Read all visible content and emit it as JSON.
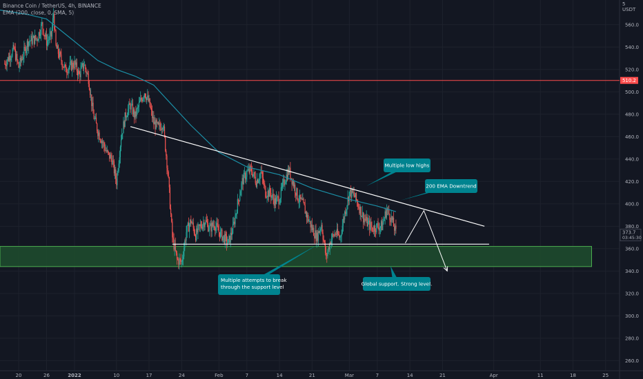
{
  "legend": {
    "symbol_line": "Binance Coin / TetherUS, 4h, BINANCE",
    "indicator_line": "EMA (200, close, 0, SMA, 5)"
  },
  "price_axis_currency": [
    "5",
    "USDT"
  ],
  "colors": {
    "background": "#131722",
    "up": "#26a69a",
    "down": "#ef5350",
    "ema": "#1b8fa6",
    "resistance_line": "#ff4d4d",
    "support_zone_fill": "#1f4d2e",
    "support_zone_border": "#4caf50",
    "trendline": "#ffffff",
    "callout": "#00838f",
    "axis_text": "#b2b5be"
  },
  "icons": [
    "arrow-down-right-icon"
  ],
  "chart_data": {
    "type": "candlestick",
    "title": "Binance Coin / TetherUS, 4h, BINANCE",
    "ylim": [
      251,
      582
    ],
    "y_ticks": [
      260,
      280,
      300,
      320,
      340,
      360,
      380,
      400,
      420,
      440,
      460,
      480,
      500,
      520,
      540,
      560
    ],
    "x_ticks": [
      {
        "label": "20",
        "date": "2021-12-20"
      },
      {
        "label": "26",
        "date": "2021-12-26"
      },
      {
        "label": "2022",
        "date": "2022-01-01"
      },
      {
        "label": "10",
        "date": "2022-01-10"
      },
      {
        "label": "17",
        "date": "2022-01-17"
      },
      {
        "label": "24",
        "date": "2022-01-24"
      },
      {
        "label": "Feb",
        "date": "2022-02-01"
      },
      {
        "label": "7",
        "date": "2022-02-07"
      },
      {
        "label": "14",
        "date": "2022-02-14"
      },
      {
        "label": "21",
        "date": "2022-02-21"
      },
      {
        "label": "Mar",
        "date": "2022-03-01"
      },
      {
        "label": "7",
        "date": "2022-03-07"
      },
      {
        "label": "14",
        "date": "2022-03-14"
      },
      {
        "label": "21",
        "date": "2022-03-21"
      },
      {
        "label": "Apr",
        "date": "2022-04-01"
      },
      {
        "label": "11",
        "date": "2022-04-11"
      },
      {
        "label": "18",
        "date": "2022-04-18"
      },
      {
        "label": "25",
        "date": "2022-04-25"
      }
    ],
    "price_path": [
      [
        "2021-12-17",
        525
      ],
      [
        "2021-12-19",
        538
      ],
      [
        "2021-12-20",
        522
      ],
      [
        "2021-12-22",
        545
      ],
      [
        "2021-12-24",
        548
      ],
      [
        "2021-12-25",
        560
      ],
      [
        "2021-12-26",
        545
      ],
      [
        "2021-12-27",
        550
      ],
      [
        "2021-12-27 12:00",
        570
      ],
      [
        "2021-12-28",
        540
      ],
      [
        "2021-12-29",
        530
      ],
      [
        "2021-12-30",
        520
      ],
      [
        "2022-01-01",
        525
      ],
      [
        "2022-01-02",
        515
      ],
      [
        "2022-01-03",
        525
      ],
      [
        "2022-01-04",
        512
      ],
      [
        "2022-01-05",
        480
      ],
      [
        "2022-01-06",
        465
      ],
      [
        "2022-01-07",
        455
      ],
      [
        "2022-01-08",
        445
      ],
      [
        "2022-01-09",
        440
      ],
      [
        "2022-01-10",
        420
      ],
      [
        "2022-01-11",
        460
      ],
      [
        "2022-01-12",
        480
      ],
      [
        "2022-01-13",
        488
      ],
      [
        "2022-01-14",
        478
      ],
      [
        "2022-01-15",
        490
      ],
      [
        "2022-01-16",
        500
      ],
      [
        "2022-01-17",
        490
      ],
      [
        "2022-01-18",
        472
      ],
      [
        "2022-01-19",
        468
      ],
      [
        "2022-01-20",
        472
      ],
      [
        "2022-01-21",
        430
      ],
      [
        "2022-01-22",
        370
      ],
      [
        "2022-01-23",
        350
      ],
      [
        "2022-01-24",
        348
      ],
      [
        "2022-01-25",
        375
      ],
      [
        "2022-01-26",
        385
      ],
      [
        "2022-01-27",
        372
      ],
      [
        "2022-01-28",
        380
      ],
      [
        "2022-01-29",
        385
      ],
      [
        "2022-01-30",
        378
      ],
      [
        "2022-01-31",
        382
      ],
      [
        "2022-02-01",
        375
      ],
      [
        "2022-02-02",
        370
      ],
      [
        "2022-02-03",
        365
      ],
      [
        "2022-02-04",
        378
      ],
      [
        "2022-02-05",
        400
      ],
      [
        "2022-02-06",
        420
      ],
      [
        "2022-02-07",
        428
      ],
      [
        "2022-02-08",
        430
      ],
      [
        "2022-02-09",
        420
      ],
      [
        "2022-02-10",
        428
      ],
      [
        "2022-02-11",
        410
      ],
      [
        "2022-02-12",
        410
      ],
      [
        "2022-02-13",
        402
      ],
      [
        "2022-02-14",
        405
      ],
      [
        "2022-02-15",
        420
      ],
      [
        "2022-02-16",
        430
      ],
      [
        "2022-02-17",
        418
      ],
      [
        "2022-02-18",
        405
      ],
      [
        "2022-02-19",
        400
      ],
      [
        "2022-02-20",
        388
      ],
      [
        "2022-02-21",
        378
      ],
      [
        "2022-02-22",
        370
      ],
      [
        "2022-02-23",
        382
      ],
      [
        "2022-02-24",
        352
      ],
      [
        "2022-02-25",
        368
      ],
      [
        "2022-02-26",
        374
      ],
      [
        "2022-02-27",
        370
      ],
      [
        "2022-02-28",
        392
      ],
      [
        "2022-03-01",
        410
      ],
      [
        "2022-03-02",
        408
      ],
      [
        "2022-03-03",
        398
      ],
      [
        "2022-03-04",
        388
      ],
      [
        "2022-03-05",
        382
      ],
      [
        "2022-03-06",
        378
      ],
      [
        "2022-03-07",
        380
      ],
      [
        "2022-03-08",
        380
      ],
      [
        "2022-03-09",
        395
      ],
      [
        "2022-03-10",
        387
      ],
      [
        "2022-03-11",
        374
      ]
    ],
    "ema_200": [
      [
        "2021-12-16",
        573
      ],
      [
        "2021-12-22",
        569
      ],
      [
        "2021-12-26",
        565
      ],
      [
        "2022-01-01",
        545
      ],
      [
        "2022-01-06",
        528
      ],
      [
        "2022-01-10",
        520
      ],
      [
        "2022-01-14",
        514
      ],
      [
        "2022-01-18",
        506
      ],
      [
        "2022-01-22",
        488
      ],
      [
        "2022-01-26",
        470
      ],
      [
        "2022-02-01",
        446
      ],
      [
        "2022-02-07",
        433
      ],
      [
        "2022-02-14",
        426
      ],
      [
        "2022-02-21",
        414
      ],
      [
        "2022-03-01",
        404
      ],
      [
        "2022-03-07",
        398
      ],
      [
        "2022-03-11",
        393
      ]
    ],
    "annotations": {
      "resistance_level": 510.2,
      "last_price": "373.7",
      "countdown": "03:45:30",
      "price_labels": [
        "510.2",
        "373.7"
      ],
      "support_zone": {
        "from": "2021-12-16",
        "to": "2022-04-22",
        "low": 344,
        "high": 362
      },
      "support_line": {
        "from": "2022-01-22",
        "to": "2022-03-31",
        "price": 364
      },
      "descending_trendline": {
        "from": [
          "2022-01-13",
          469
        ],
        "to": [
          "2022-03-30",
          380
        ]
      },
      "projection_path": [
        [
          "2022-03-13",
          365
        ],
        [
          "2022-03-17",
          394
        ],
        [
          "2022-03-22",
          340
        ]
      ],
      "callouts": [
        {
          "text": "Multiple low highs",
          "anchor": [
            "2022-03-01",
            413
          ]
        },
        {
          "text": "200 EMA Downtrend",
          "anchor": [
            "2022-03-10",
            393
          ]
        },
        {
          "text": "Multiple attempts to break through the support level",
          "anchor": [
            "2022-02-24",
            365
          ]
        },
        {
          "text": "Global support. Strong level.",
          "anchor": [
            "2022-03-17",
            353
          ]
        }
      ]
    }
  }
}
